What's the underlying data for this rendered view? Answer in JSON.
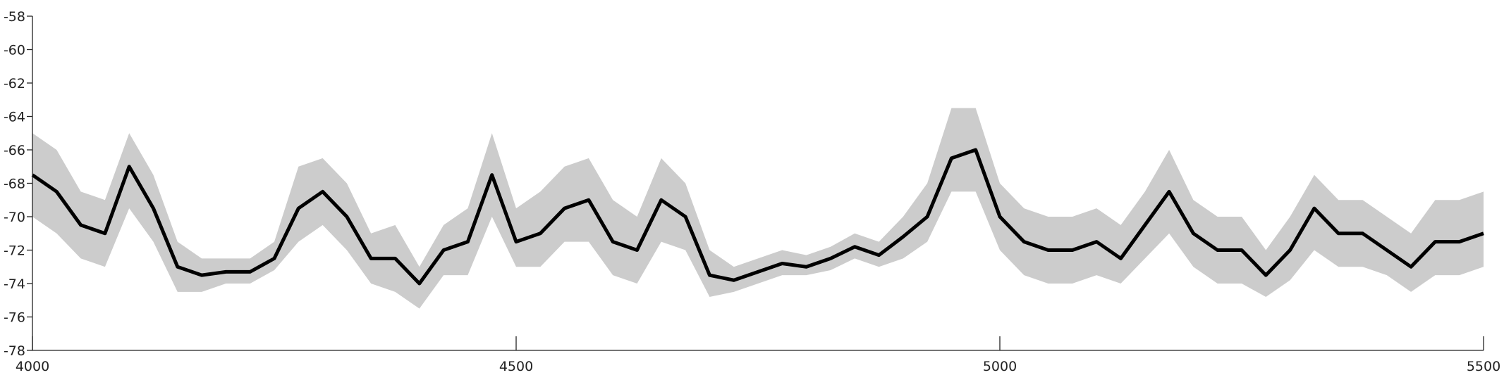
{
  "chart_data": {
    "type": "line",
    "x": [
      4000,
      4025,
      4050,
      4075,
      4100,
      4125,
      4150,
      4175,
      4200,
      4225,
      4250,
      4275,
      4300,
      4325,
      4350,
      4375,
      4400,
      4425,
      4450,
      4475,
      4500,
      4525,
      4550,
      4575,
      4600,
      4625,
      4650,
      4675,
      4700,
      4725,
      4750,
      4775,
      4800,
      4825,
      4850,
      4875,
      4900,
      4925,
      4950,
      4975,
      5000,
      5025,
      5050,
      5075,
      5100,
      5125,
      5150,
      5175,
      5200,
      5225,
      5250,
      5275,
      5300,
      5325,
      5350,
      5375,
      5400,
      5425,
      5450,
      5475,
      5500
    ],
    "series": [
      {
        "color": "#000000",
        "values": [
          -67.5,
          -68.5,
          -70.5,
          -71,
          -67,
          -69.5,
          -73,
          -73.5,
          -73.3,
          -73.3,
          -72.5,
          -69.5,
          -68.5,
          -70,
          -72.5,
          -72.5,
          -74,
          -72,
          -71.5,
          -67.5,
          -71.5,
          -71,
          -69.5,
          -69,
          -71.5,
          -72,
          -69,
          -70,
          -73.5,
          -73.8,
          -73.3,
          -72.8,
          -73,
          -72.5,
          -71.8,
          -72.3,
          -71.2,
          -70,
          -66.5,
          -66,
          -70,
          -71.5,
          -72,
          -72,
          -71.5,
          -72.5,
          -70.5,
          -68.5,
          -71,
          -72,
          -72,
          -73.5,
          -72,
          -69.5,
          -71,
          -71,
          -72,
          -73,
          -71.5,
          -71.5,
          -71
        ]
      }
    ],
    "band": {
      "color": "#cccccc",
      "upper": [
        -65,
        -66,
        -68.5,
        -69,
        -65,
        -67.5,
        -71.5,
        -72.5,
        -72.5,
        -72.5,
        -71.5,
        -67,
        -66.5,
        -68,
        -71,
        -70.5,
        -73,
        -70.5,
        -69.5,
        -65,
        -69.5,
        -68.5,
        -67,
        -66.5,
        -69,
        -70,
        -66.5,
        -68,
        -72,
        -73,
        -72.5,
        -72,
        -72.3,
        -71.8,
        -71,
        -71.5,
        -70,
        -68,
        -63.5,
        -63.5,
        -68,
        -69.5,
        -70,
        -70,
        -69.5,
        -70.5,
        -68.5,
        -66,
        -69,
        -70,
        -70,
        -72,
        -70,
        -67.5,
        -69,
        -69,
        -70,
        -71,
        -69,
        -69,
        -68.5
      ],
      "lower": [
        -70,
        -71,
        -72.5,
        -73,
        -69.5,
        -71.5,
        -74.5,
        -74.5,
        -74,
        -74,
        -73.2,
        -71.5,
        -70.5,
        -72,
        -74,
        -74.5,
        -75.5,
        -73.5,
        -73.5,
        -70,
        -73,
        -73,
        -71.5,
        -71.5,
        -73.5,
        -74,
        -71.5,
        -72,
        -74.8,
        -74.5,
        -74,
        -73.5,
        -73.5,
        -73.2,
        -72.5,
        -73,
        -72.5,
        -71.5,
        -68.5,
        -68.5,
        -72,
        -73.5,
        -74,
        -74,
        -73.5,
        -74,
        -72.5,
        -71,
        -73,
        -74,
        -74,
        -74.8,
        -73.8,
        -72,
        -73,
        -73,
        -73.5,
        -74.5,
        -73.5,
        -73.5,
        -73
      ]
    },
    "xlim": [
      4000,
      5500
    ],
    "xticks": [
      4000,
      4500,
      5000,
      5500
    ],
    "ylim": [
      -78,
      -58
    ],
    "yticks": [
      -78,
      -76,
      -74,
      -72,
      -70,
      -68,
      -66,
      -64,
      -62,
      -60,
      -58
    ]
  }
}
